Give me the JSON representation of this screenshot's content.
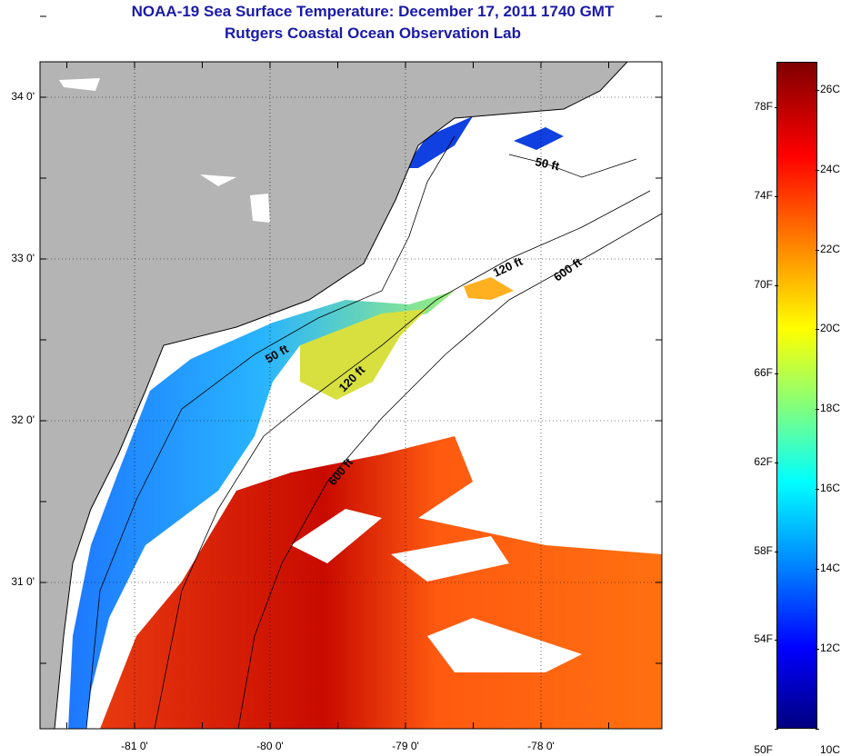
{
  "title": "NOAA-19 Sea Surface Temperature:  December 17, 2011 1740 GMT",
  "subtitle": "Rutgers Coastal Ocean Observation Lab",
  "map": {
    "lat_labels": [
      {
        "value": 34,
        "label": "34 0'"
      },
      {
        "value": 33,
        "label": "33 0'"
      },
      {
        "value": 32,
        "label": "32 0'"
      },
      {
        "value": 31,
        "label": "31 0'"
      }
    ],
    "lon_labels": [
      {
        "value": -81,
        "label": "-81 0'"
      },
      {
        "value": -80,
        "label": "-80 0'"
      },
      {
        "value": -79,
        "label": "-79 0'"
      },
      {
        "value": -78,
        "label": "-78 0'"
      }
    ],
    "contour_labels": [
      "50 ft",
      "50 ft",
      "120 ft",
      "120 ft",
      "600 ft",
      "600 ft"
    ],
    "colors": {
      "land": "#b4b4b4",
      "nodata": "#ffffff"
    }
  },
  "colorbar": {
    "fahrenheit": [
      {
        "value": 50,
        "label": "50F"
      },
      {
        "value": 54,
        "label": "54F"
      },
      {
        "value": 58,
        "label": "58F"
      },
      {
        "value": 62,
        "label": "62F"
      },
      {
        "value": 66,
        "label": "66F"
      },
      {
        "value": 70,
        "label": "70F"
      },
      {
        "value": 74,
        "label": "74F"
      },
      {
        "value": 78,
        "label": "78F"
      }
    ],
    "celsius": [
      {
        "value": 10,
        "label": "10C"
      },
      {
        "value": 12,
        "label": "12C"
      },
      {
        "value": 14,
        "label": "14C"
      },
      {
        "value": 16,
        "label": "16C"
      },
      {
        "value": 18,
        "label": "18C"
      },
      {
        "value": 20,
        "label": "20C"
      },
      {
        "value": 22,
        "label": "22C"
      },
      {
        "value": 24,
        "label": "24C"
      },
      {
        "value": 26,
        "label": "26C"
      }
    ],
    "range_c": [
      10,
      26.7
    ]
  }
}
